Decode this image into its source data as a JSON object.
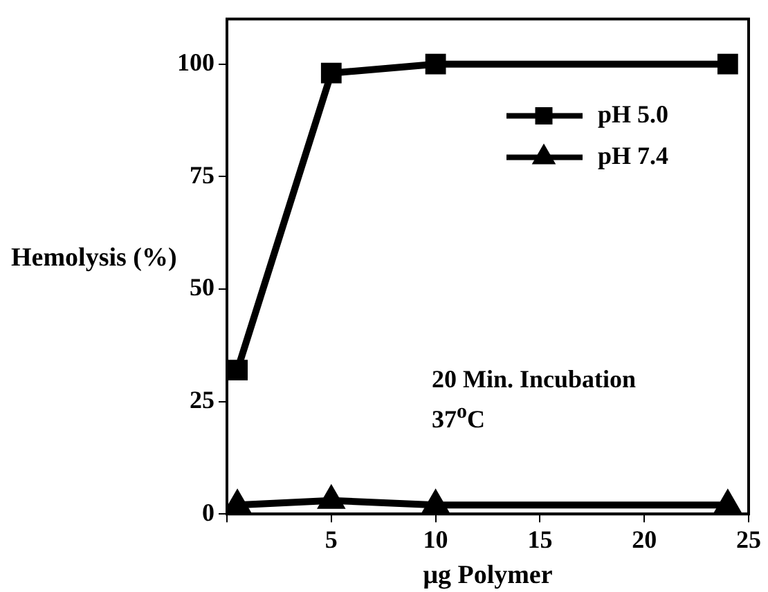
{
  "chart_data": {
    "type": "line",
    "xlabel": "μg Polymer",
    "ylabel": "Hemolysis (%)",
    "xlim": [
      0,
      25
    ],
    "xticks": [
      {
        "value": 0,
        "label": null
      },
      5,
      10,
      15,
      20,
      25
    ],
    "ylim": [
      0,
      110
    ],
    "yticks": [
      0,
      25,
      50,
      75,
      100
    ],
    "series": [
      {
        "name": "pH 5.0",
        "color": "#000000",
        "marker": "square",
        "x": [
          0.5,
          5,
          10,
          24
        ],
        "values": [
          32,
          98,
          100,
          100
        ]
      },
      {
        "name": "pH 7.4",
        "color": "#000000",
        "marker": "triangle",
        "x": [
          0.5,
          5,
          10,
          24
        ],
        "values": [
          2,
          3,
          2,
          2
        ]
      }
    ],
    "annotations": [
      "20 Min. Incubation",
      "37$^{o}$C"
    ],
    "legend": "top right",
    "grid": false,
    "line_style": "solid"
  }
}
